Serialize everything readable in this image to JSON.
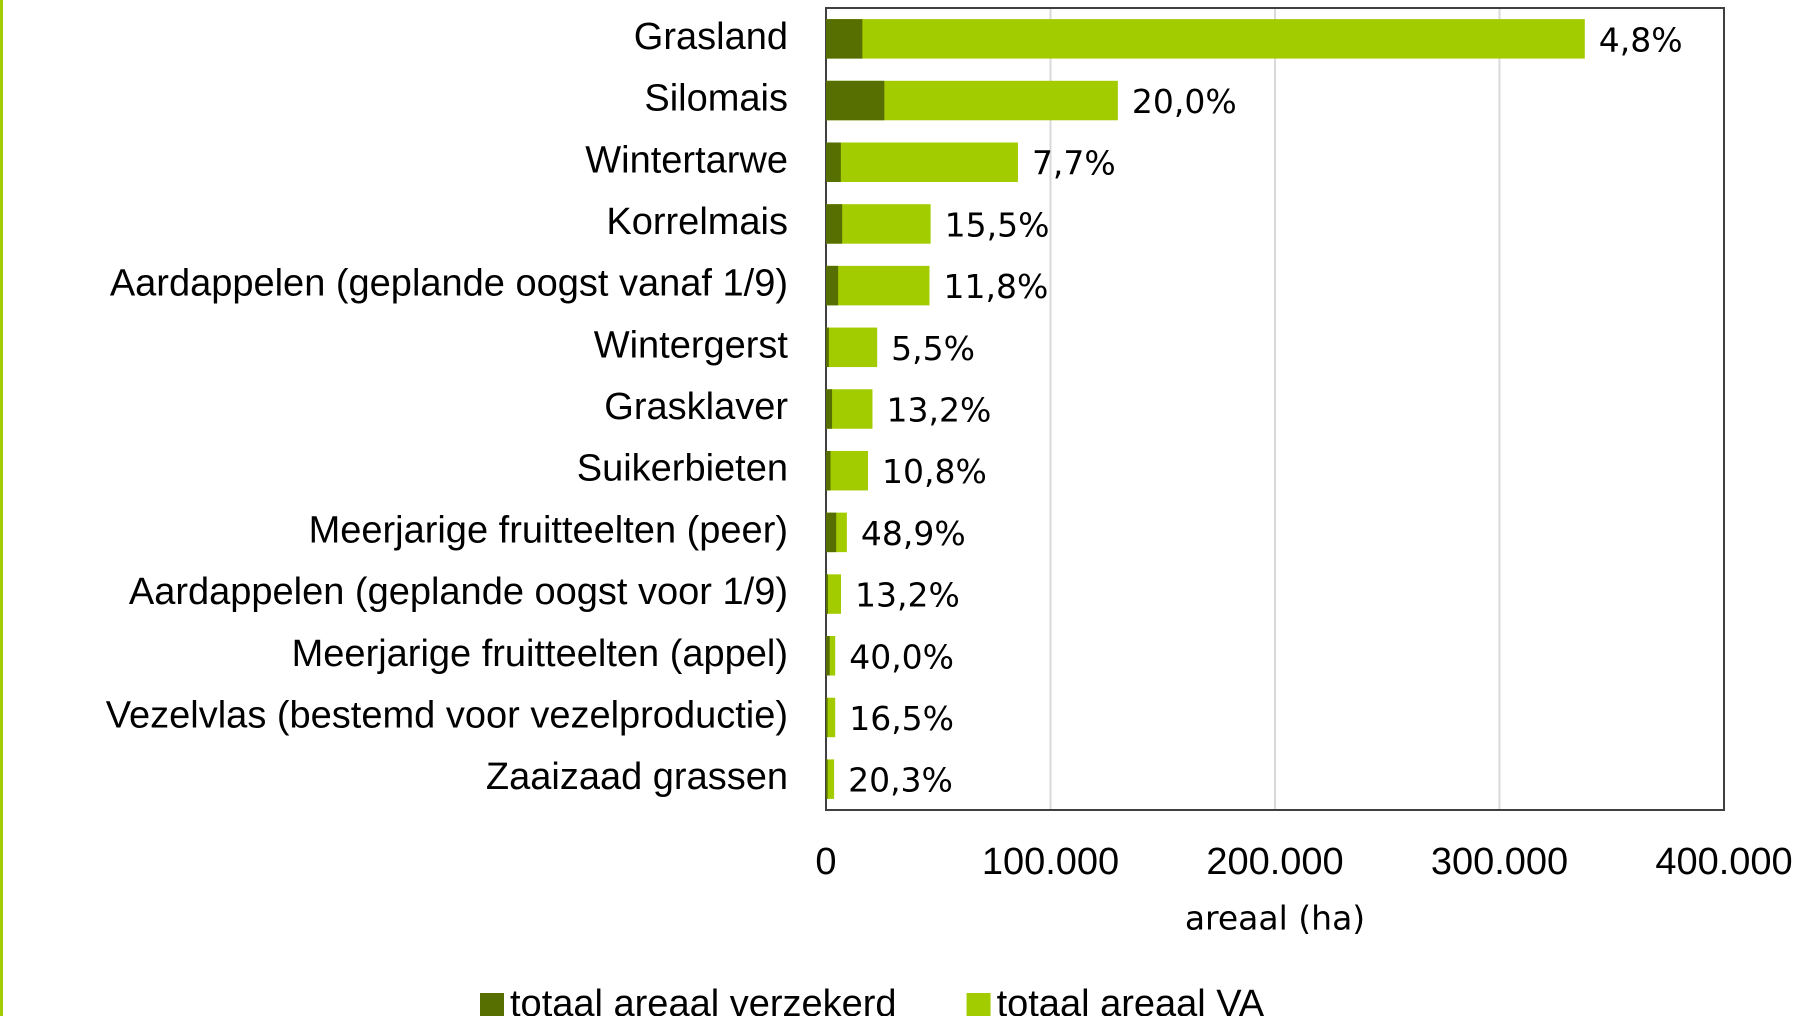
{
  "chart_data": {
    "type": "bar",
    "orientation": "horizontal",
    "categories": [
      "Grasland",
      "Silomais",
      "Wintertarwe",
      "Korrelmais",
      "Aardappelen (geplande oogst vanaf 1/9)",
      "Wintergerst",
      "Grasklaver",
      "Suikerbieten",
      "Meerjarige fruitteelten (peer)",
      "Aardappelen (geplande oogst voor 1/9)",
      "Meerjarige fruitteelten (appel)",
      "Vezelvlas (bestemd voor vezelproductie)",
      "Zaaizaad grassen"
    ],
    "series": [
      {
        "name": "totaal areaal VA",
        "color": "#a3cc00",
        "values": [
          338000,
          130000,
          85500,
          46600,
          46100,
          22800,
          20700,
          18700,
          9300,
          6700,
          4100,
          4100,
          3600
        ]
      },
      {
        "name": "totaal areaal verzekerd",
        "color": "#566f00",
        "values": [
          16200,
          26000,
          6600,
          7200,
          5400,
          1250,
          2700,
          2000,
          4550,
          880,
          1640,
          680,
          730
        ]
      }
    ],
    "data_labels": [
      "4,8%",
      "20,0%",
      "7,7%",
      "15,5%",
      "11,8%",
      "5,5%",
      "13,2%",
      "10,8%",
      "48,9%",
      "13,2%",
      "40,0%",
      "16,5%",
      "20,3%"
    ],
    "legend_order": [
      "totaal areaal verzekerd",
      "totaal areaal VA"
    ],
    "xlabel": "areaal (ha)",
    "xlim": [
      0,
      400000
    ],
    "xticks": [
      0,
      {
        "value": 100000,
        "label": "100.000"
      },
      {
        "value": 200000,
        "label": "200.000"
      },
      {
        "value": 300000,
        "label": "300.000"
      },
      {
        "value": 400000,
        "label": "400.000"
      }
    ],
    "grid": true,
    "legend": "bottom"
  }
}
